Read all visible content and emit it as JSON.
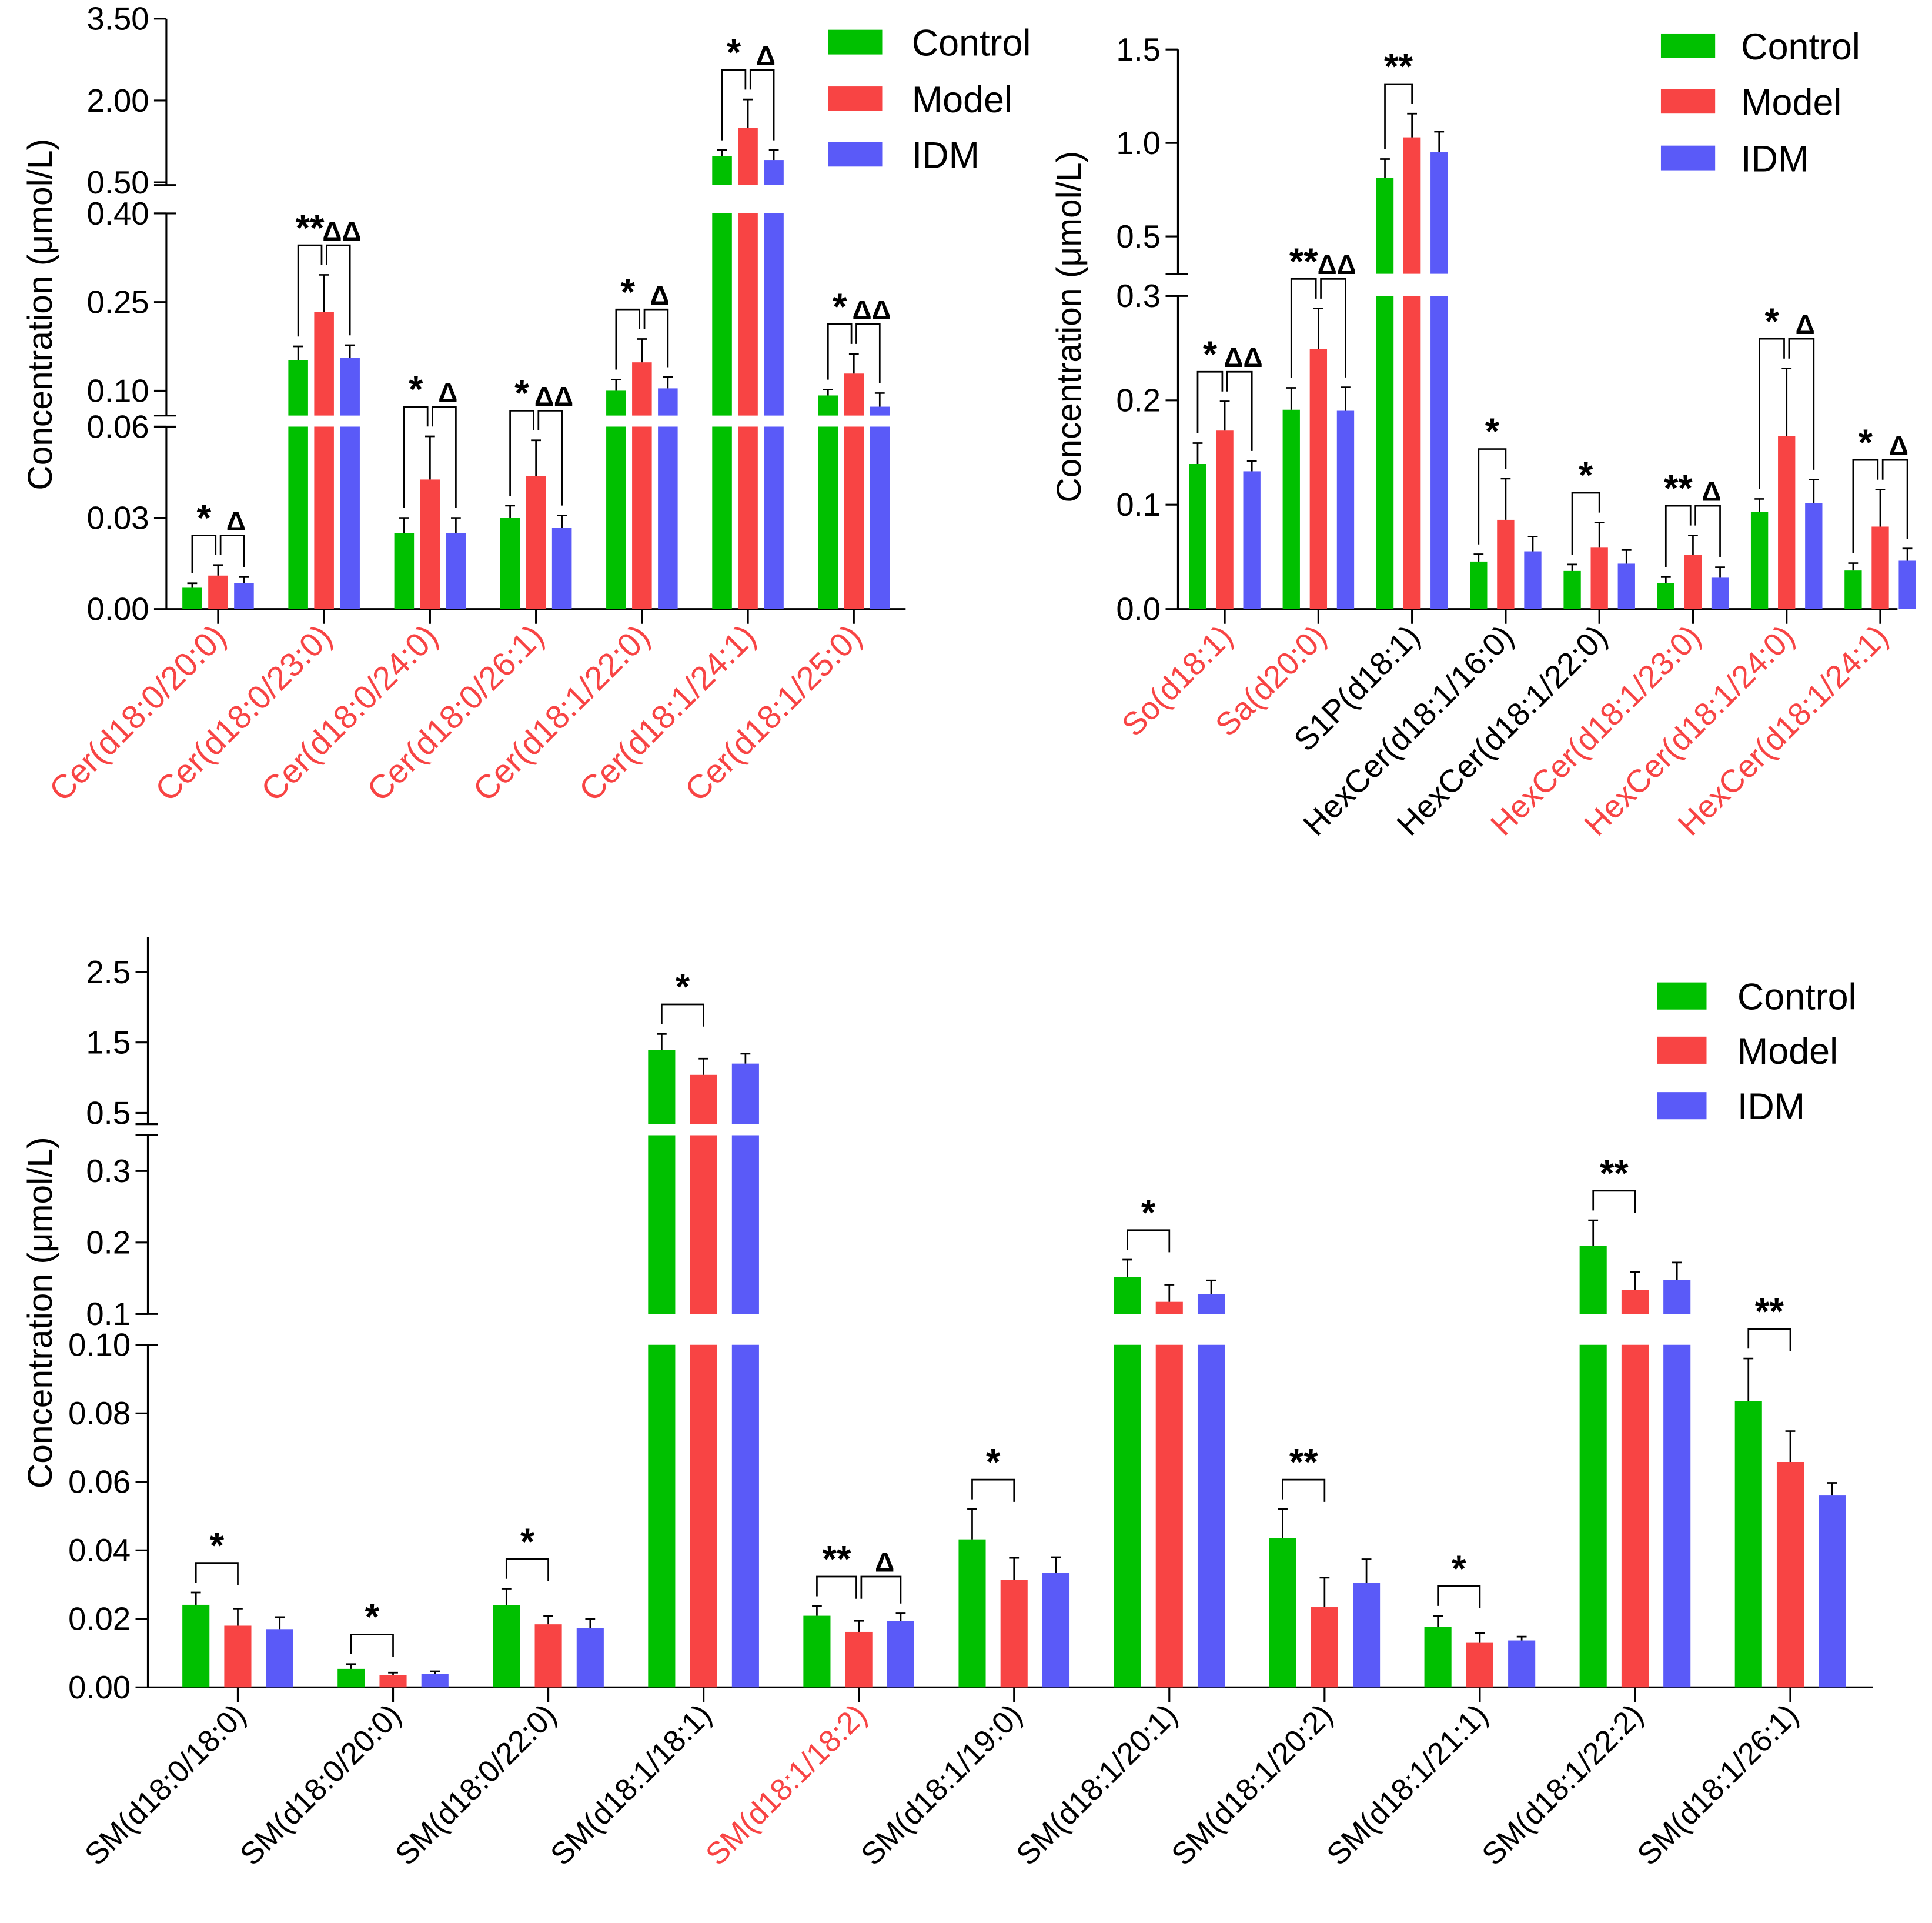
{
  "colors": {
    "Control": "#00c000",
    "Model": "#f84444",
    "IDM": "#5a5af8",
    "label_red": "#f84444",
    "label_black": "#000000"
  },
  "chart_data": [
    {
      "type": "bar",
      "title": "",
      "ylabel": "Concentration (μmol/L)",
      "legend": [
        "Control",
        "Model",
        "IDM"
      ],
      "legend_position": "top-right",
      "broken_axis_segments": [
        [
          0,
          0.06
        ],
        [
          0.058,
          0.4
        ],
        [
          0.45,
          3.5
        ]
      ],
      "yticks": [
        [
          0,
          "0.00"
        ],
        [
          0.03,
          "0.03"
        ],
        [
          0.06,
          "0.06"
        ],
        [
          0.1,
          "0.10"
        ],
        [
          0.25,
          "0.25"
        ],
        [
          0.4,
          "0.40"
        ],
        [
          0.5,
          "0.50"
        ],
        [
          2.0,
          "2.00"
        ],
        [
          3.5,
          "3.50"
        ]
      ],
      "categories": [
        "Cer(d18:0/20:0)",
        "Cer(d18:0/23:0)",
        "Cer(d18:0/24:0)",
        "Cer(d18:0/26:1)",
        "Cer(d18:1/22:0)",
        "Cer(d18:1/24:1)",
        "Cer(d18:1/25:0)"
      ],
      "category_colors": [
        "red",
        "red",
        "red",
        "red",
        "red",
        "red",
        "red"
      ],
      "series": [
        {
          "name": "Control",
          "values": [
            0.007,
            0.152,
            0.025,
            0.03,
            0.1,
            0.98,
            0.092
          ],
          "error_top": [
            0.0085,
            0.175,
            0.03,
            0.034,
            0.119,
            1.09,
            0.102
          ]
        },
        {
          "name": "Model",
          "values": [
            0.011,
            0.233,
            0.0426,
            0.0438,
            0.148,
            1.5,
            0.129
          ],
          "error_top": [
            0.0145,
            0.296,
            0.0568,
            0.0555,
            0.1875,
            2.02,
            0.1625
          ]
        },
        {
          "name": "IDM",
          "values": [
            0.0085,
            0.156,
            0.025,
            0.0268,
            0.104,
            0.91,
            0.073
          ],
          "error_top": [
            0.0105,
            0.177,
            0.03,
            0.0308,
            0.123,
            1.09,
            0.096
          ]
        }
      ],
      "significance": [
        {
          "vs_control": "*",
          "vs_model": "Δ"
        },
        {
          "vs_control": "**",
          "vs_model": "ΔΔ"
        },
        {
          "vs_control": "*",
          "vs_model": "Δ"
        },
        {
          "vs_control": "*",
          "vs_model": "ΔΔ"
        },
        {
          "vs_control": "*",
          "vs_model": "Δ"
        },
        {
          "vs_control": "*",
          "vs_model": "Δ"
        },
        {
          "vs_control": "*",
          "vs_model": "ΔΔ"
        }
      ]
    },
    {
      "type": "bar",
      "title": "",
      "ylabel": "Concentration (μmol/L)",
      "legend": [
        "Control",
        "Model",
        "IDM"
      ],
      "legend_position": "top-right",
      "broken_axis_segments": [
        [
          0,
          0.3
        ],
        [
          0.3,
          1.5
        ]
      ],
      "yticks": [
        [
          0,
          "0.0"
        ],
        [
          0.1,
          "0.1"
        ],
        [
          0.2,
          "0.2"
        ],
        [
          0.3,
          "0.3"
        ],
        [
          0.5,
          "0.5"
        ],
        [
          1.0,
          "1.0"
        ],
        [
          1.5,
          "1.5"
        ]
      ],
      "categories": [
        "So(d18:1)",
        "Sa(d20:0)",
        "S1P(d18:1)",
        "HexCer(d18:1/16:0)",
        "HexCer(d18:1/22:0)",
        "HexCer(d18:1/23:0)",
        "HexCer(d18:1/24:0)",
        "HexCer(d18:1/24:1)"
      ],
      "category_colors": [
        "red",
        "red",
        "black",
        "black",
        "black",
        "red",
        "red",
        "red"
      ],
      "series": [
        {
          "name": "Control",
          "values": [
            0.139,
            0.191,
            0.814,
            0.0455,
            0.0365,
            0.025,
            0.093,
            0.0369
          ],
          "error_top": [
            0.159,
            0.212,
            0.914,
            0.0525,
            0.0427,
            0.0306,
            0.1055,
            0.044
          ]
        },
        {
          "name": "Model",
          "values": [
            0.171,
            0.249,
            1.03,
            0.0855,
            0.0588,
            0.0518,
            0.166,
            0.079
          ],
          "error_top": [
            0.199,
            0.288,
            1.157,
            0.125,
            0.083,
            0.0706,
            0.2306,
            0.1145
          ]
        },
        {
          "name": "IDM",
          "values": [
            0.132,
            0.19,
            0.95,
            0.0553,
            0.0435,
            0.03,
            0.1016,
            0.0463
          ],
          "error_top": [
            0.142,
            0.2125,
            1.06,
            0.0694,
            0.0565,
            0.04,
            0.124,
            0.058
          ]
        }
      ],
      "significance": [
        {
          "vs_control": "*",
          "vs_model": "ΔΔ"
        },
        {
          "vs_control": "**",
          "vs_model": "ΔΔ"
        },
        {
          "vs_control": "**",
          "vs_model": ""
        },
        {
          "vs_control": "*",
          "vs_model": ""
        },
        {
          "vs_control": "*",
          "vs_model": ""
        },
        {
          "vs_control": "**",
          "vs_model": "Δ"
        },
        {
          "vs_control": "*",
          "vs_model": "Δ"
        },
        {
          "vs_control": "*",
          "vs_model": "Δ"
        }
      ]
    },
    {
      "type": "bar",
      "title": "",
      "ylabel": "Concentration (μmol/L)",
      "legend": [
        "Control",
        "Model",
        "IDM"
      ],
      "legend_position": "top-right",
      "broken_axis_segments": [
        [
          0,
          0.1
        ],
        [
          0.1,
          0.35
        ],
        [
          0.34,
          3.0
        ]
      ],
      "yticks": [
        [
          0,
          "0.00"
        ],
        [
          0.02,
          "0.02"
        ],
        [
          0.04,
          "0.04"
        ],
        [
          0.06,
          "0.06"
        ],
        [
          0.08,
          "0.08"
        ],
        [
          0.1,
          "0.10"
        ],
        [
          0.1,
          "0.1"
        ],
        [
          0.2,
          "0.2"
        ],
        [
          0.3,
          "0.3"
        ],
        [
          0.5,
          "0.5"
        ],
        [
          1.5,
          "1.5"
        ],
        [
          2.5,
          "2.5"
        ]
      ],
      "categories": [
        "SM(d18:0/18:0)",
        "SM(d18:0/20:0)",
        "SM(d18:0/22:0)",
        "SM(d18:1/18:1)",
        "SM(d18:1/18:2)",
        "SM(d18:1/19:0)",
        "SM(d18:1/20:1)",
        "SM(d18:1/20:2)",
        "SM(d18:1/21:1)",
        "SM(d18:1/22:2)",
        "SM(d18:1/26:1)"
      ],
      "category_colors": [
        "black",
        "black",
        "black",
        "black",
        "red",
        "black",
        "black",
        "black",
        "black",
        "black",
        "black"
      ],
      "series": [
        {
          "name": "Control",
          "values": [
            0.0241,
            0.0054,
            0.024,
            1.39,
            0.0209,
            0.0432,
            0.152,
            0.0435,
            0.0176,
            0.195,
            0.0835
          ],
          "error_top": [
            0.0277,
            0.0068,
            0.0288,
            1.62,
            0.0237,
            0.052,
            0.176,
            0.052,
            0.0209,
            0.231,
            0.096
          ]
        },
        {
          "name": "Model",
          "values": [
            0.018,
            0.0036,
            0.0184,
            1.04,
            0.0162,
            0.0313,
            0.117,
            0.0234,
            0.013,
            0.134,
            0.0658
          ],
          "error_top": [
            0.023,
            0.0043,
            0.0209,
            1.27,
            0.0194,
            0.0378,
            0.141,
            0.032,
            0.0158,
            0.159,
            0.0748
          ]
        },
        {
          "name": "IDM",
          "values": [
            0.017,
            0.004,
            0.0173,
            1.2,
            0.0194,
            0.0335,
            0.128,
            0.0306,
            0.0137,
            0.148,
            0.056
          ],
          "error_top": [
            0.0205,
            0.0047,
            0.02,
            1.34,
            0.0216,
            0.038,
            0.147,
            0.0374,
            0.0148,
            0.172,
            0.0597
          ]
        }
      ],
      "significance": [
        {
          "vs_control": "*",
          "vs_model": ""
        },
        {
          "vs_control": "*",
          "vs_model": ""
        },
        {
          "vs_control": "*",
          "vs_model": ""
        },
        {
          "vs_control": "*",
          "vs_model": ""
        },
        {
          "vs_control": "**",
          "vs_model": "Δ"
        },
        {
          "vs_control": "*",
          "vs_model": ""
        },
        {
          "vs_control": "*",
          "vs_model": ""
        },
        {
          "vs_control": "**",
          "vs_model": ""
        },
        {
          "vs_control": "*",
          "vs_model": ""
        },
        {
          "vs_control": "**",
          "vs_model": ""
        },
        {
          "vs_control": "**",
          "vs_model": ""
        }
      ]
    }
  ]
}
